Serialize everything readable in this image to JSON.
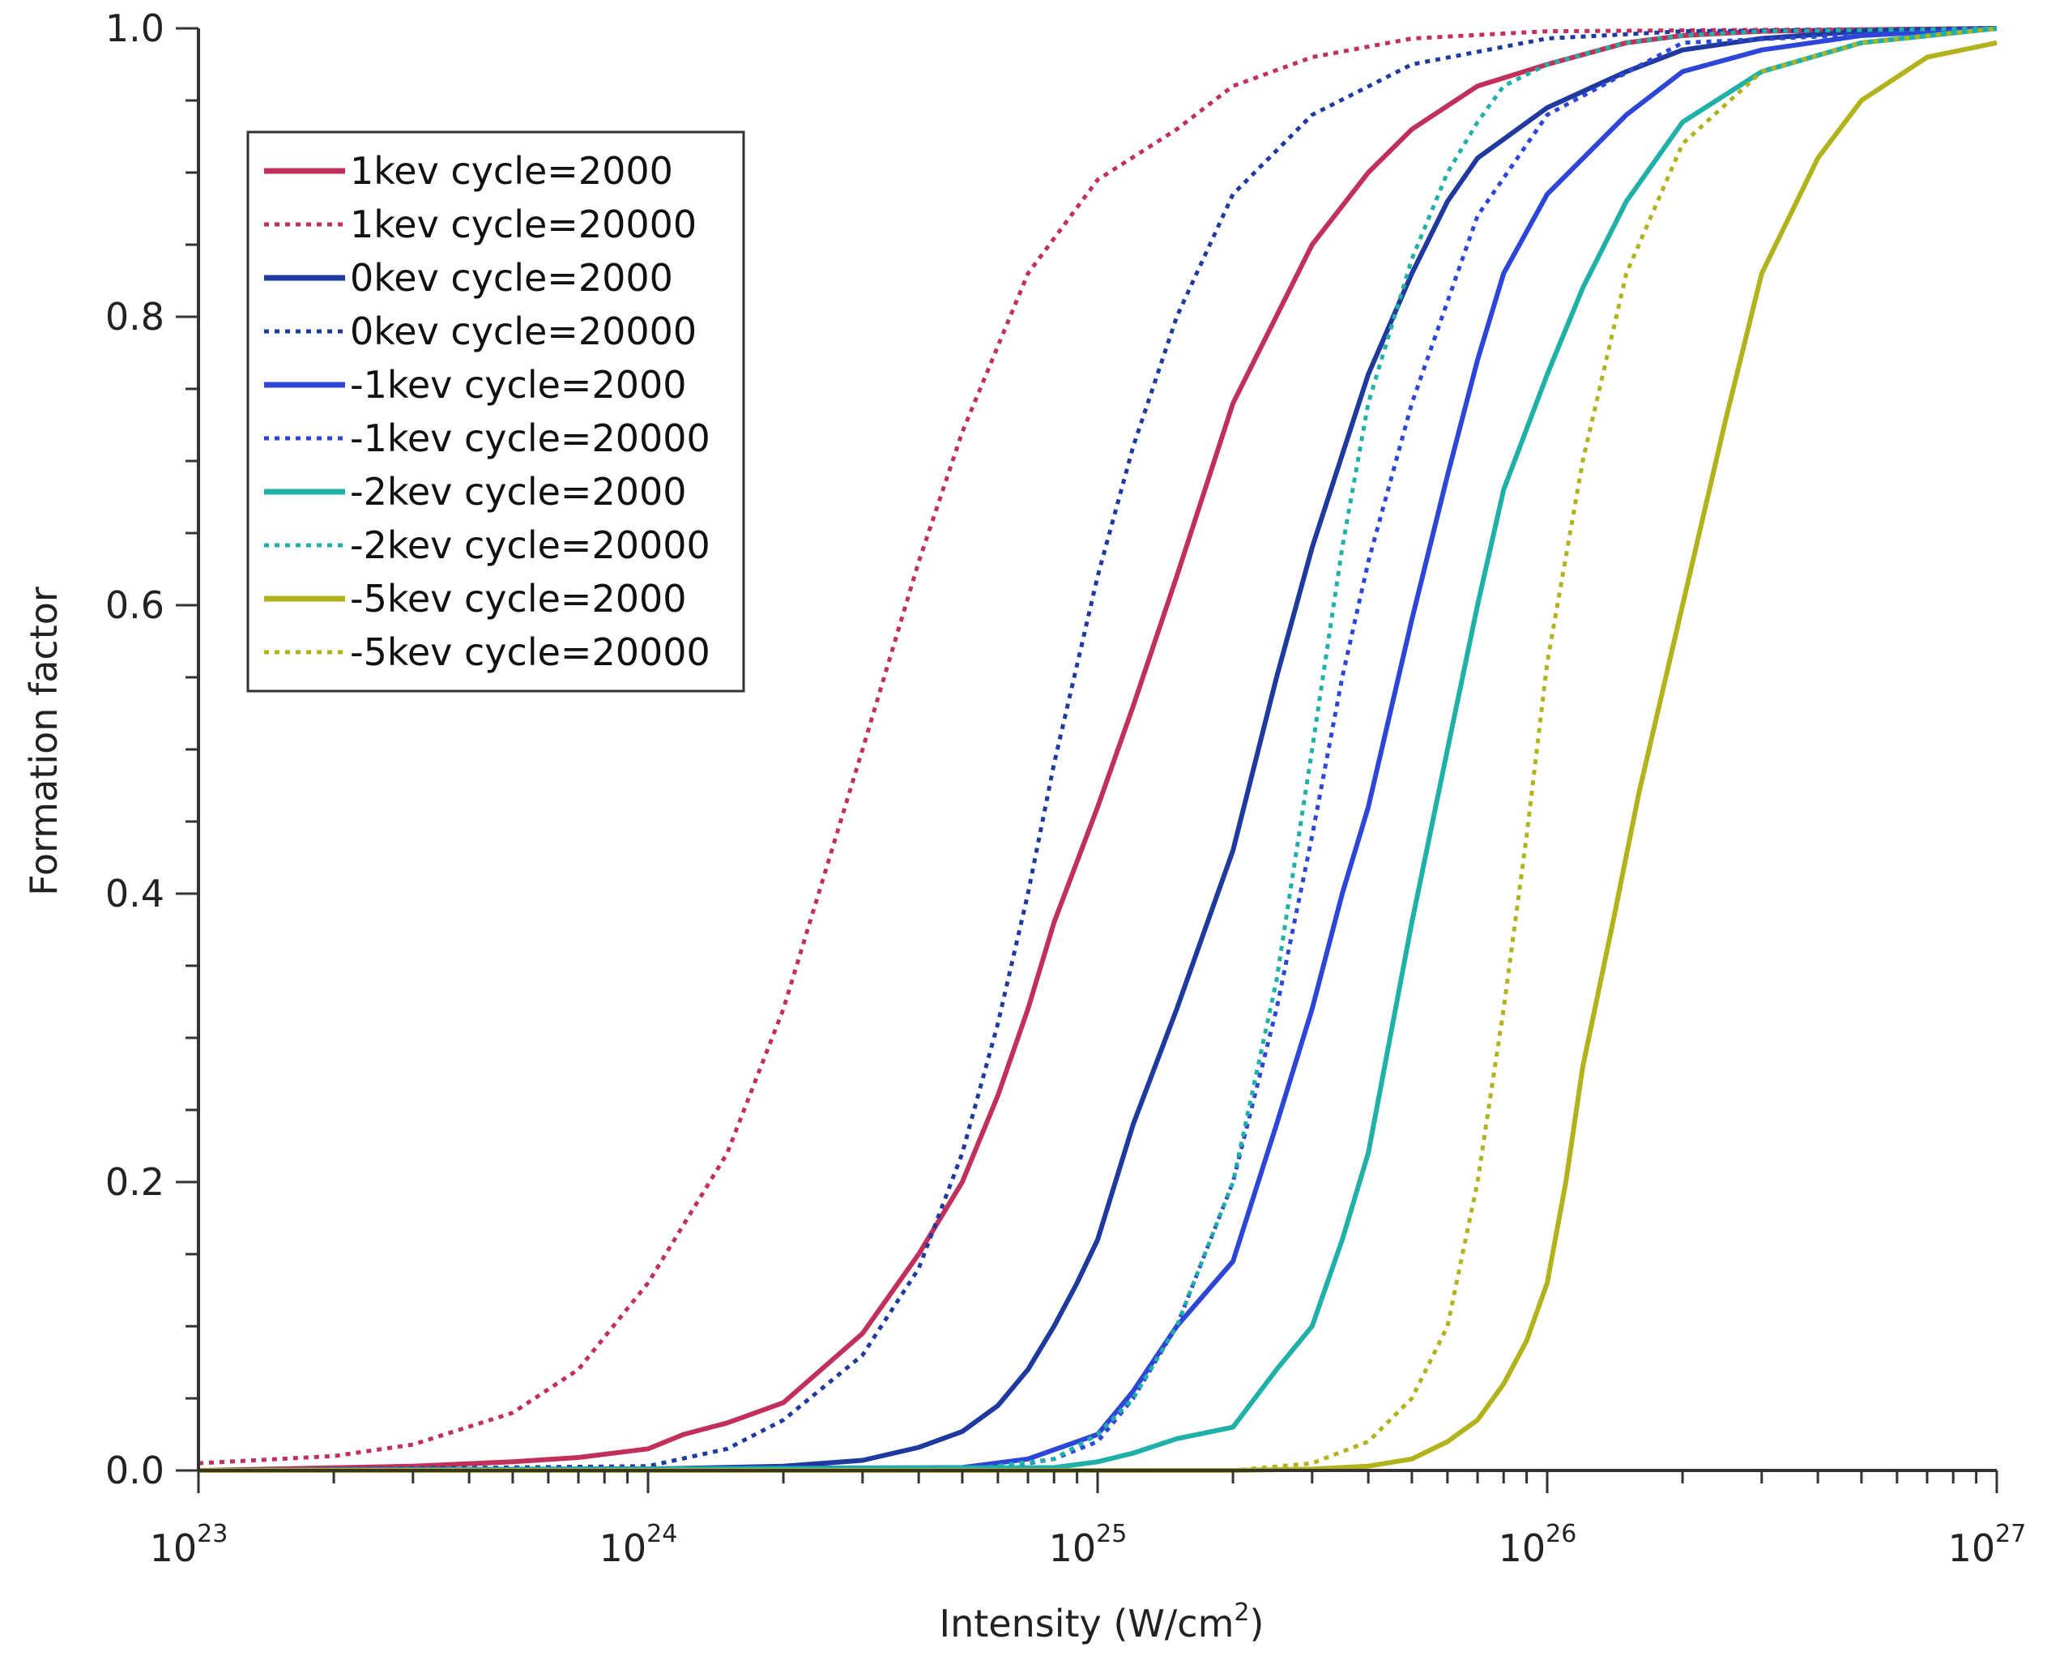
{
  "chart_data": {
    "type": "line",
    "title": "",
    "xlabel": "Intensity (W/cm",
    "xlabel_sup": "2",
    "xlabel_close": ")",
    "ylabel": "Formation factor",
    "x_scale": "log",
    "xlim": [
      1e+23,
      1e+27
    ],
    "ylim": [
      0,
      1
    ],
    "grid": false,
    "legend_position": "top-left",
    "x_tick_labels": [
      {
        "value": 1e+23,
        "base": "10",
        "exp": "23"
      },
      {
        "value": 1e+24,
        "base": "10",
        "exp": "24"
      },
      {
        "value": 1e+25,
        "base": "10",
        "exp": "25"
      },
      {
        "value": 1e+26,
        "base": "10",
        "exp": "26"
      },
      {
        "value": 1e+27,
        "base": "10",
        "exp": "27"
      }
    ],
    "y_tick_labels": [
      {
        "value": 0.0,
        "label": "0.0"
      },
      {
        "value": 0.2,
        "label": "0.2"
      },
      {
        "value": 0.4,
        "label": "0.4"
      },
      {
        "value": 0.6,
        "label": "0.6"
      },
      {
        "value": 0.8,
        "label": "0.8"
      },
      {
        "value": 1.0,
        "label": "1.0"
      }
    ],
    "series": [
      {
        "name": "1kev cycle=2000",
        "color": "#c0305a",
        "style": "solid",
        "x": [
          1e+23,
          3e+23,
          5e+23,
          7e+23,
          1e+24,
          1.2e+24,
          1.5e+24,
          2e+24,
          3e+24,
          4e+24,
          5e+24,
          6e+24,
          7e+24,
          8e+24,
          1e+25,
          1.2e+25,
          1.5e+25,
          2e+25,
          3e+25,
          4e+25,
          5e+25,
          7e+25,
          1e+26,
          1.5e+26,
          2e+26,
          3e+26,
          5e+26,
          1e+27
        ],
        "y": [
          0.0,
          0.003,
          0.006,
          0.009,
          0.015,
          0.025,
          0.033,
          0.047,
          0.095,
          0.15,
          0.2,
          0.26,
          0.32,
          0.38,
          0.46,
          0.53,
          0.62,
          0.74,
          0.85,
          0.9,
          0.93,
          0.96,
          0.975,
          0.99,
          0.995,
          0.998,
          0.999,
          1.0
        ]
      },
      {
        "name": "1kev cycle=20000",
        "color": "#c0305a",
        "style": "dotted",
        "x": [
          1e+23,
          2e+23,
          3e+23,
          5e+23,
          7e+23,
          1e+24,
          1.5e+24,
          2e+24,
          3e+24,
          4e+24,
          5e+24,
          7e+24,
          1e+25,
          1.5e+25,
          2e+25,
          3e+25,
          5e+25,
          1e+26,
          1e+27
        ],
        "y": [
          0.005,
          0.01,
          0.018,
          0.04,
          0.07,
          0.13,
          0.22,
          0.32,
          0.5,
          0.63,
          0.72,
          0.83,
          0.895,
          0.93,
          0.96,
          0.98,
          0.993,
          0.998,
          1.0
        ]
      },
      {
        "name": "0kev cycle=2000",
        "color": "#1f3a9e",
        "style": "solid",
        "x": [
          1e+23,
          1e+24,
          2e+24,
          3e+24,
          4e+24,
          5e+24,
          6e+24,
          7e+24,
          8e+24,
          9e+24,
          1e+25,
          1.2e+25,
          1.5e+25,
          2e+25,
          2.5e+25,
          3e+25,
          4e+25,
          5e+25,
          6e+25,
          7e+25,
          1e+26,
          1.5e+26,
          2e+26,
          3e+26,
          5e+26,
          1e+27
        ],
        "y": [
          0.0,
          0.001,
          0.003,
          0.007,
          0.016,
          0.027,
          0.045,
          0.07,
          0.1,
          0.13,
          0.16,
          0.24,
          0.32,
          0.43,
          0.55,
          0.64,
          0.76,
          0.83,
          0.88,
          0.91,
          0.945,
          0.97,
          0.985,
          0.993,
          0.998,
          1.0
        ]
      },
      {
        "name": "0kev cycle=20000",
        "color": "#1f3a9e",
        "style": "dotted",
        "x": [
          1e+23,
          1e+24,
          1.5e+24,
          2e+24,
          3e+24,
          4e+24,
          5e+24,
          6e+24,
          7e+24,
          8e+24,
          1e+25,
          1.2e+25,
          1.5e+25,
          2e+25,
          3e+25,
          5e+25,
          1e+26,
          2e+26,
          1e+27
        ],
        "y": [
          0.0,
          0.003,
          0.015,
          0.035,
          0.08,
          0.14,
          0.22,
          0.31,
          0.4,
          0.49,
          0.62,
          0.71,
          0.8,
          0.885,
          0.94,
          0.975,
          0.993,
          0.998,
          1.0
        ]
      },
      {
        "name": "-1kev cycle=2000",
        "color": "#2e46d8",
        "style": "solid",
        "x": [
          1e+23,
          5e+24,
          7e+24,
          1e+25,
          1.2e+25,
          1.5e+25,
          2e+25,
          2.5e+25,
          3e+25,
          3.5e+25,
          4e+25,
          5e+25,
          6e+25,
          7e+25,
          8e+25,
          1e+26,
          1.5e+26,
          2e+26,
          3e+26,
          5e+26,
          1e+27
        ],
        "y": [
          0.0,
          0.002,
          0.008,
          0.025,
          0.055,
          0.1,
          0.145,
          0.24,
          0.32,
          0.4,
          0.46,
          0.59,
          0.69,
          0.77,
          0.83,
          0.885,
          0.94,
          0.97,
          0.985,
          0.995,
          1.0
        ]
      },
      {
        "name": "-1kev cycle=20000",
        "color": "#2e46d8",
        "style": "dotted",
        "x": [
          1e+23,
          2e+24,
          5e+24,
          7e+24,
          8e+24,
          1e+25,
          1.2e+25,
          1.5e+25,
          2e+25,
          2.5e+25,
          3e+25,
          3.5e+25,
          4e+25,
          5e+25,
          7e+25,
          1e+26,
          2e+26,
          1e+27
        ],
        "y": [
          0.0,
          0.0,
          0.002,
          0.005,
          0.008,
          0.02,
          0.05,
          0.1,
          0.2,
          0.32,
          0.44,
          0.55,
          0.63,
          0.74,
          0.87,
          0.94,
          0.99,
          1.0
        ]
      },
      {
        "name": "-2kev cycle=2000",
        "color": "#1fb0a8",
        "style": "solid",
        "x": [
          1e+23,
          8e+24,
          1e+25,
          1.2e+25,
          1.5e+25,
          2e+25,
          2.5e+25,
          3e+25,
          3.5e+25,
          4e+25,
          5e+25,
          6e+25,
          7e+25,
          8e+25,
          1e+26,
          1.2e+26,
          1.5e+26,
          2e+26,
          3e+26,
          5e+26,
          1e+27
        ],
        "y": [
          0.0,
          0.002,
          0.006,
          0.012,
          0.022,
          0.03,
          0.07,
          0.1,
          0.16,
          0.22,
          0.38,
          0.5,
          0.6,
          0.68,
          0.76,
          0.82,
          0.88,
          0.935,
          0.97,
          0.99,
          1.0
        ]
      },
      {
        "name": "-2kev cycle=20000",
        "color": "#1fb0a8",
        "style": "dotted",
        "x": [
          1e+23,
          5e+24,
          8e+24,
          1e+25,
          1.2e+25,
          1.5e+25,
          2e+25,
          2.5e+25,
          3e+25,
          3.5e+25,
          4e+25,
          5e+25,
          6e+25,
          7e+25,
          8e+25,
          1e+26,
          1.5e+26,
          2e+26,
          3e+26,
          1e+27
        ],
        "y": [
          0.0,
          0.0,
          0.008,
          0.025,
          0.05,
          0.1,
          0.2,
          0.34,
          0.5,
          0.64,
          0.74,
          0.84,
          0.9,
          0.935,
          0.96,
          0.975,
          0.99,
          0.995,
          0.998,
          1.0
        ]
      },
      {
        "name": "-5kev cycle=2000",
        "color": "#b2b21c",
        "style": "solid",
        "x": [
          1e+23,
          2e+25,
          3e+25,
          4e+25,
          5e+25,
          6e+25,
          7e+25,
          8e+25,
          9e+25,
          1e+26,
          1.1e+26,
          1.2e+26,
          1.4e+26,
          1.6e+26,
          2e+26,
          2.5e+26,
          3e+26,
          4e+26,
          5e+26,
          7e+26,
          1e+27
        ],
        "y": [
          0.0,
          0.0,
          0.001,
          0.003,
          0.008,
          0.02,
          0.035,
          0.06,
          0.09,
          0.13,
          0.2,
          0.28,
          0.38,
          0.47,
          0.6,
          0.73,
          0.83,
          0.91,
          0.95,
          0.98,
          0.99
        ]
      },
      {
        "name": "-5kev cycle=20000",
        "color": "#b2b21c",
        "style": "dotted",
        "x": [
          1e+23,
          2e+25,
          3e+25,
          4e+25,
          5e+25,
          6e+25,
          7e+25,
          8e+25,
          9e+25,
          1e+26,
          1.2e+26,
          1.5e+26,
          2e+26,
          3e+26,
          5e+26,
          1e+27
        ],
        "y": [
          0.0,
          0.0,
          0.005,
          0.02,
          0.05,
          0.1,
          0.2,
          0.32,
          0.44,
          0.56,
          0.7,
          0.83,
          0.92,
          0.97,
          0.99,
          1.0
        ]
      }
    ]
  }
}
